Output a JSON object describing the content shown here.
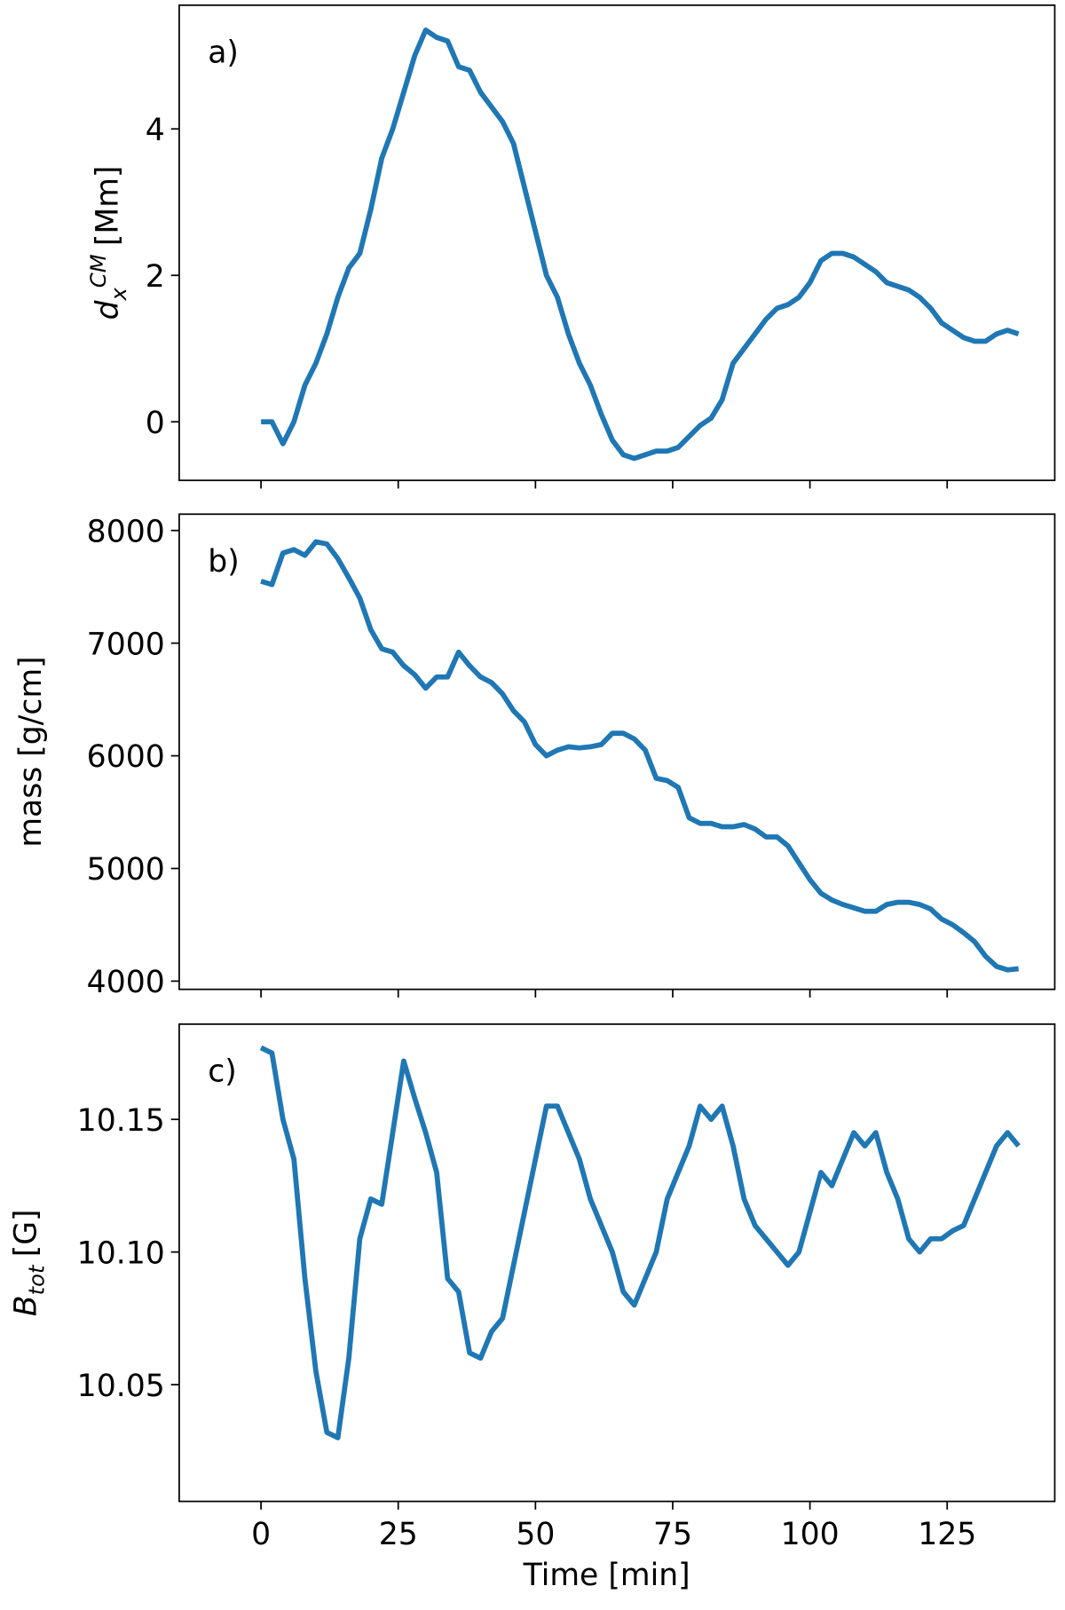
{
  "chart_data": [
    {
      "type": "line",
      "label": "a)",
      "color": "#1f77b4",
      "ylabel": {
        "base": "d",
        "sub": "x",
        "sup": "CM",
        "unit": "[Mm]"
      },
      "x": [
        0,
        2,
        4,
        6,
        8,
        10,
        12,
        14,
        16,
        18,
        20,
        22,
        24,
        26,
        28,
        30,
        32,
        34,
        36,
        38,
        40,
        42,
        44,
        46,
        48,
        50,
        52,
        54,
        56,
        58,
        60,
        62,
        64,
        66,
        68,
        70,
        72,
        74,
        76,
        78,
        80,
        82,
        84,
        86,
        88,
        90,
        92,
        94,
        96,
        98,
        100,
        102,
        104,
        106,
        108,
        110,
        112,
        114,
        116,
        118,
        120,
        122,
        124,
        126,
        128,
        130,
        132,
        134,
        136,
        138
      ],
      "values": [
        0,
        0,
        -0.3,
        0,
        0.5,
        0.8,
        1.2,
        1.7,
        2.1,
        2.3,
        2.9,
        3.6,
        4.0,
        4.5,
        5.0,
        5.35,
        5.25,
        5.2,
        4.85,
        4.8,
        4.5,
        4.3,
        4.1,
        3.8,
        3.2,
        2.6,
        2.0,
        1.7,
        1.2,
        0.8,
        0.5,
        0.1,
        -0.25,
        -0.45,
        -0.5,
        -0.45,
        -0.4,
        -0.4,
        -0.35,
        -0.2,
        -0.05,
        0.05,
        0.3,
        0.8,
        1.0,
        1.2,
        1.4,
        1.55,
        1.6,
        1.7,
        1.9,
        2.2,
        2.3,
        2.3,
        2.25,
        2.15,
        2.05,
        1.9,
        1.85,
        1.8,
        1.7,
        1.55,
        1.35,
        1.25,
        1.15,
        1.1,
        1.1,
        1.2,
        1.25,
        1.2
      ],
      "xlim": [
        -14.9,
        144.6
      ],
      "xticks": [
        0,
        25,
        50,
        75,
        100,
        125
      ],
      "xtick_labels": false,
      "ylim": [
        -0.8,
        5.69
      ],
      "yticks": [
        0,
        2,
        4
      ]
    },
    {
      "type": "line",
      "label": "b)",
      "color": "#1f77b4",
      "ylabel": {
        "base": "mass [g/cm]"
      },
      "x": [
        0,
        2,
        4,
        6,
        8,
        10,
        12,
        14,
        16,
        18,
        20,
        22,
        24,
        26,
        28,
        30,
        32,
        34,
        36,
        38,
        40,
        42,
        44,
        46,
        48,
        50,
        52,
        54,
        56,
        58,
        60,
        62,
        64,
        66,
        68,
        70,
        72,
        74,
        76,
        78,
        80,
        82,
        84,
        86,
        88,
        90,
        92,
        94,
        96,
        98,
        100,
        102,
        104,
        106,
        108,
        110,
        112,
        114,
        116,
        118,
        120,
        122,
        124,
        126,
        128,
        130,
        132,
        134,
        136,
        138
      ],
      "values": [
        7550,
        7520,
        7800,
        7830,
        7780,
        7900,
        7880,
        7750,
        7580,
        7400,
        7120,
        6950,
        6920,
        6800,
        6720,
        6600,
        6700,
        6700,
        6920,
        6800,
        6700,
        6650,
        6550,
        6400,
        6300,
        6100,
        6000,
        6050,
        6080,
        6070,
        6080,
        6100,
        6200,
        6200,
        6150,
        6050,
        5800,
        5780,
        5720,
        5450,
        5400,
        5400,
        5370,
        5370,
        5390,
        5350,
        5280,
        5280,
        5200,
        5050,
        4900,
        4780,
        4720,
        4680,
        4650,
        4620,
        4620,
        4680,
        4700,
        4700,
        4680,
        4640,
        4550,
        4500,
        4430,
        4350,
        4220,
        4130,
        4100,
        4110
      ],
      "xlim": [
        -14.9,
        144.6
      ],
      "xticks": [
        0,
        25,
        50,
        75,
        100,
        125
      ],
      "xtick_labels": false,
      "ylim": [
        3927,
        8145
      ],
      "yticks": [
        4000,
        5000,
        6000,
        7000,
        8000
      ]
    },
    {
      "type": "line",
      "label": "c)",
      "color": "#1f77b4",
      "ylabel": {
        "base": "B",
        "sub": "tot",
        "unit": "[G]"
      },
      "xlabel": "Time [min]",
      "x": [
        0,
        2,
        4,
        6,
        8,
        10,
        12,
        14,
        16,
        18,
        20,
        22,
        24,
        26,
        28,
        30,
        32,
        34,
        36,
        38,
        40,
        42,
        44,
        46,
        48,
        50,
        52,
        54,
        56,
        58,
        60,
        62,
        64,
        66,
        68,
        70,
        72,
        74,
        76,
        78,
        80,
        82,
        84,
        86,
        88,
        90,
        92,
        94,
        96,
        98,
        100,
        102,
        104,
        106,
        108,
        110,
        112,
        114,
        116,
        118,
        120,
        122,
        124,
        126,
        128,
        130,
        132,
        134,
        136,
        138
      ],
      "values": [
        10.177,
        10.175,
        10.15,
        10.135,
        10.09,
        10.055,
        10.032,
        10.03,
        10.06,
        10.105,
        10.12,
        10.118,
        10.145,
        10.172,
        10.158,
        10.145,
        10.13,
        10.09,
        10.085,
        10.062,
        10.06,
        10.07,
        10.075,
        10.095,
        10.115,
        10.135,
        10.155,
        10.155,
        10.145,
        10.135,
        10.12,
        10.11,
        10.1,
        10.085,
        10.08,
        10.09,
        10.1,
        10.12,
        10.13,
        10.14,
        10.155,
        10.15,
        10.155,
        10.14,
        10.12,
        10.11,
        10.105,
        10.1,
        10.095,
        10.1,
        10.115,
        10.13,
        10.125,
        10.135,
        10.145,
        10.14,
        10.145,
        10.13,
        10.12,
        10.105,
        10.1,
        10.105,
        10.105,
        10.108,
        10.11,
        10.12,
        10.13,
        10.14,
        10.145,
        10.14
      ],
      "xlim": [
        -14.9,
        144.6
      ],
      "xticks": [
        0,
        25,
        50,
        75,
        100,
        125
      ],
      "xtick_labels": true,
      "ylim": [
        10.006,
        10.1859
      ],
      "yticks": [
        10.05,
        {
          "value": 10.1,
          "label": "10.10"
        },
        10.15
      ]
    }
  ]
}
